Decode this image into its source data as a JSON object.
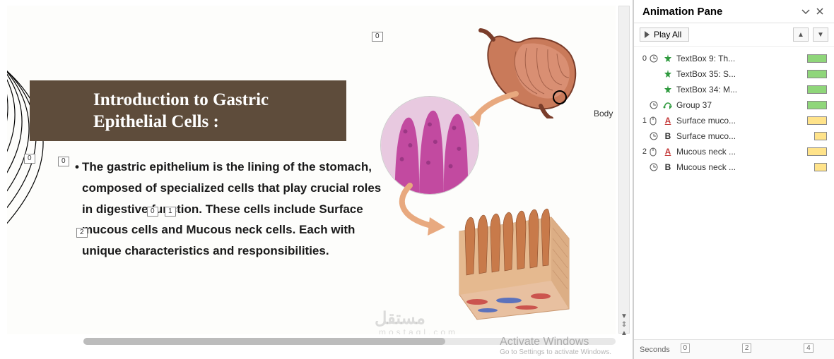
{
  "slide": {
    "title": "Introduction to Gastric Epithelial Cells :",
    "body_text": "The gastric epithelium is the lining of the stomach, composed of specialized cells that play crucial roles in digestive function. These cells include  Surface mucous cells  and  Mucous neck cells. Each with unique characteristics and responsibilities.",
    "label_body": "Body",
    "tag_0": "0",
    "tag_1": "1",
    "tag_2": "2",
    "watermark": "مستقل",
    "watermark_sub": "mostaql.com",
    "title_bg": "#5e4c3b",
    "title_color": "#ffffff",
    "title_font": "Georgia, serif",
    "title_fontsize": 25,
    "body_fontsize": 17,
    "stomach_colors": {
      "outer": "#b5654a",
      "inner": "#d98f73",
      "dark": "#7a3d2a"
    },
    "micro_colors": {
      "bg": "#e8c9e0",
      "cell": "#c24aa0",
      "deep": "#8a2f78"
    },
    "tissue_colors": {
      "top": "#e5b98f",
      "villi": "#c87a4a",
      "base": "#e8c0a0",
      "vessel_red": "#c43a3a",
      "vessel_blue": "#3a5fc4"
    },
    "arrow_color": "#e8a97f"
  },
  "anim_pane": {
    "title": "Animation Pane",
    "play_all": "Play All",
    "seconds_label": "Seconds",
    "ruler_marks": [
      "0",
      "2",
      "4"
    ],
    "effect_colors": {
      "entrance_star": "#2e9a3e",
      "motion_path": "#2e9a3e",
      "emphasis_font": "#c43a3a",
      "emphasis_bold": "#333333"
    },
    "bar_colors": {
      "green": "#8fd67a",
      "yellow": "#ffe38a"
    },
    "items": [
      {
        "seq": "0",
        "trigger": "clock",
        "effect": "star",
        "name": "TextBox 9: Th...",
        "bar": "green"
      },
      {
        "seq": "",
        "trigger": "",
        "effect": "star",
        "name": "TextBox 35: S...",
        "bar": "green"
      },
      {
        "seq": "",
        "trigger": "",
        "effect": "star",
        "name": "TextBox 34: M...",
        "bar": "green"
      },
      {
        "seq": "",
        "trigger": "clock",
        "effect": "path",
        "name": "Group 37",
        "bar": "green"
      },
      {
        "seq": "1",
        "trigger": "mouse",
        "effect": "fontA",
        "name": "Surface muco...",
        "bar": "yellow"
      },
      {
        "seq": "",
        "trigger": "clock",
        "effect": "bold",
        "name": "Surface muco...",
        "bar": "yellow-short"
      },
      {
        "seq": "2",
        "trigger": "mouse",
        "effect": "fontA",
        "name": "Mucous neck ...",
        "bar": "yellow"
      },
      {
        "seq": "",
        "trigger": "clock",
        "effect": "bold",
        "name": "Mucous neck ...",
        "bar": "yellow-short"
      }
    ]
  },
  "activate": {
    "line1": "Activate Windows",
    "line2": "Go to Settings to activate Windows."
  }
}
